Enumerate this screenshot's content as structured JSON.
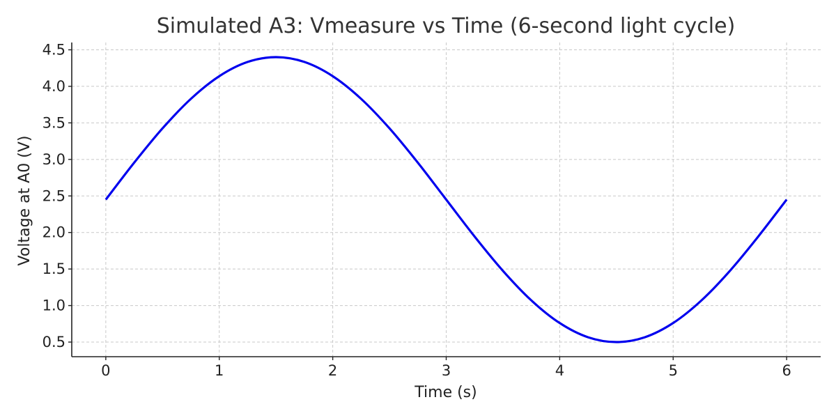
{
  "chart_data": {
    "type": "line",
    "title": "Simulated A3: Vmeasure vs Time (6-second light cycle)",
    "xlabel": "Time (s)",
    "ylabel": "Voltage at A0 (V)",
    "xlim": [
      -0.3,
      6.3
    ],
    "ylim": [
      0.3,
      4.6
    ],
    "xticks": [
      0,
      1,
      2,
      3,
      4,
      5,
      6
    ],
    "xtick_labels": [
      "0",
      "1",
      "2",
      "3",
      "4",
      "5",
      "6"
    ],
    "yticks": [
      0.5,
      1.0,
      1.5,
      2.0,
      2.5,
      3.0,
      3.5,
      4.0,
      4.5
    ],
    "ytick_labels": [
      "0.5",
      "1.0",
      "1.5",
      "2.0",
      "2.5",
      "3.0",
      "3.5",
      "4.0",
      "4.5"
    ],
    "grid": true,
    "series": [
      {
        "color": "#0000ee",
        "x": [
          0,
          0.25,
          0.5,
          0.75,
          1.0,
          1.25,
          1.5,
          1.75,
          2.0,
          2.25,
          2.5,
          2.75,
          3.0,
          3.25,
          3.5,
          3.75,
          4.0,
          4.25,
          4.5,
          4.75,
          5.0,
          5.25,
          5.5,
          5.75,
          6.0
        ],
        "y": [
          2.45,
          2.955,
          3.425,
          3.829,
          4.139,
          4.334,
          4.4,
          4.334,
          4.139,
          3.829,
          3.425,
          2.955,
          2.45,
          1.945,
          1.475,
          1.071,
          0.761,
          0.566,
          0.5,
          0.566,
          0.761,
          1.071,
          1.475,
          1.945,
          2.45
        ]
      }
    ]
  }
}
